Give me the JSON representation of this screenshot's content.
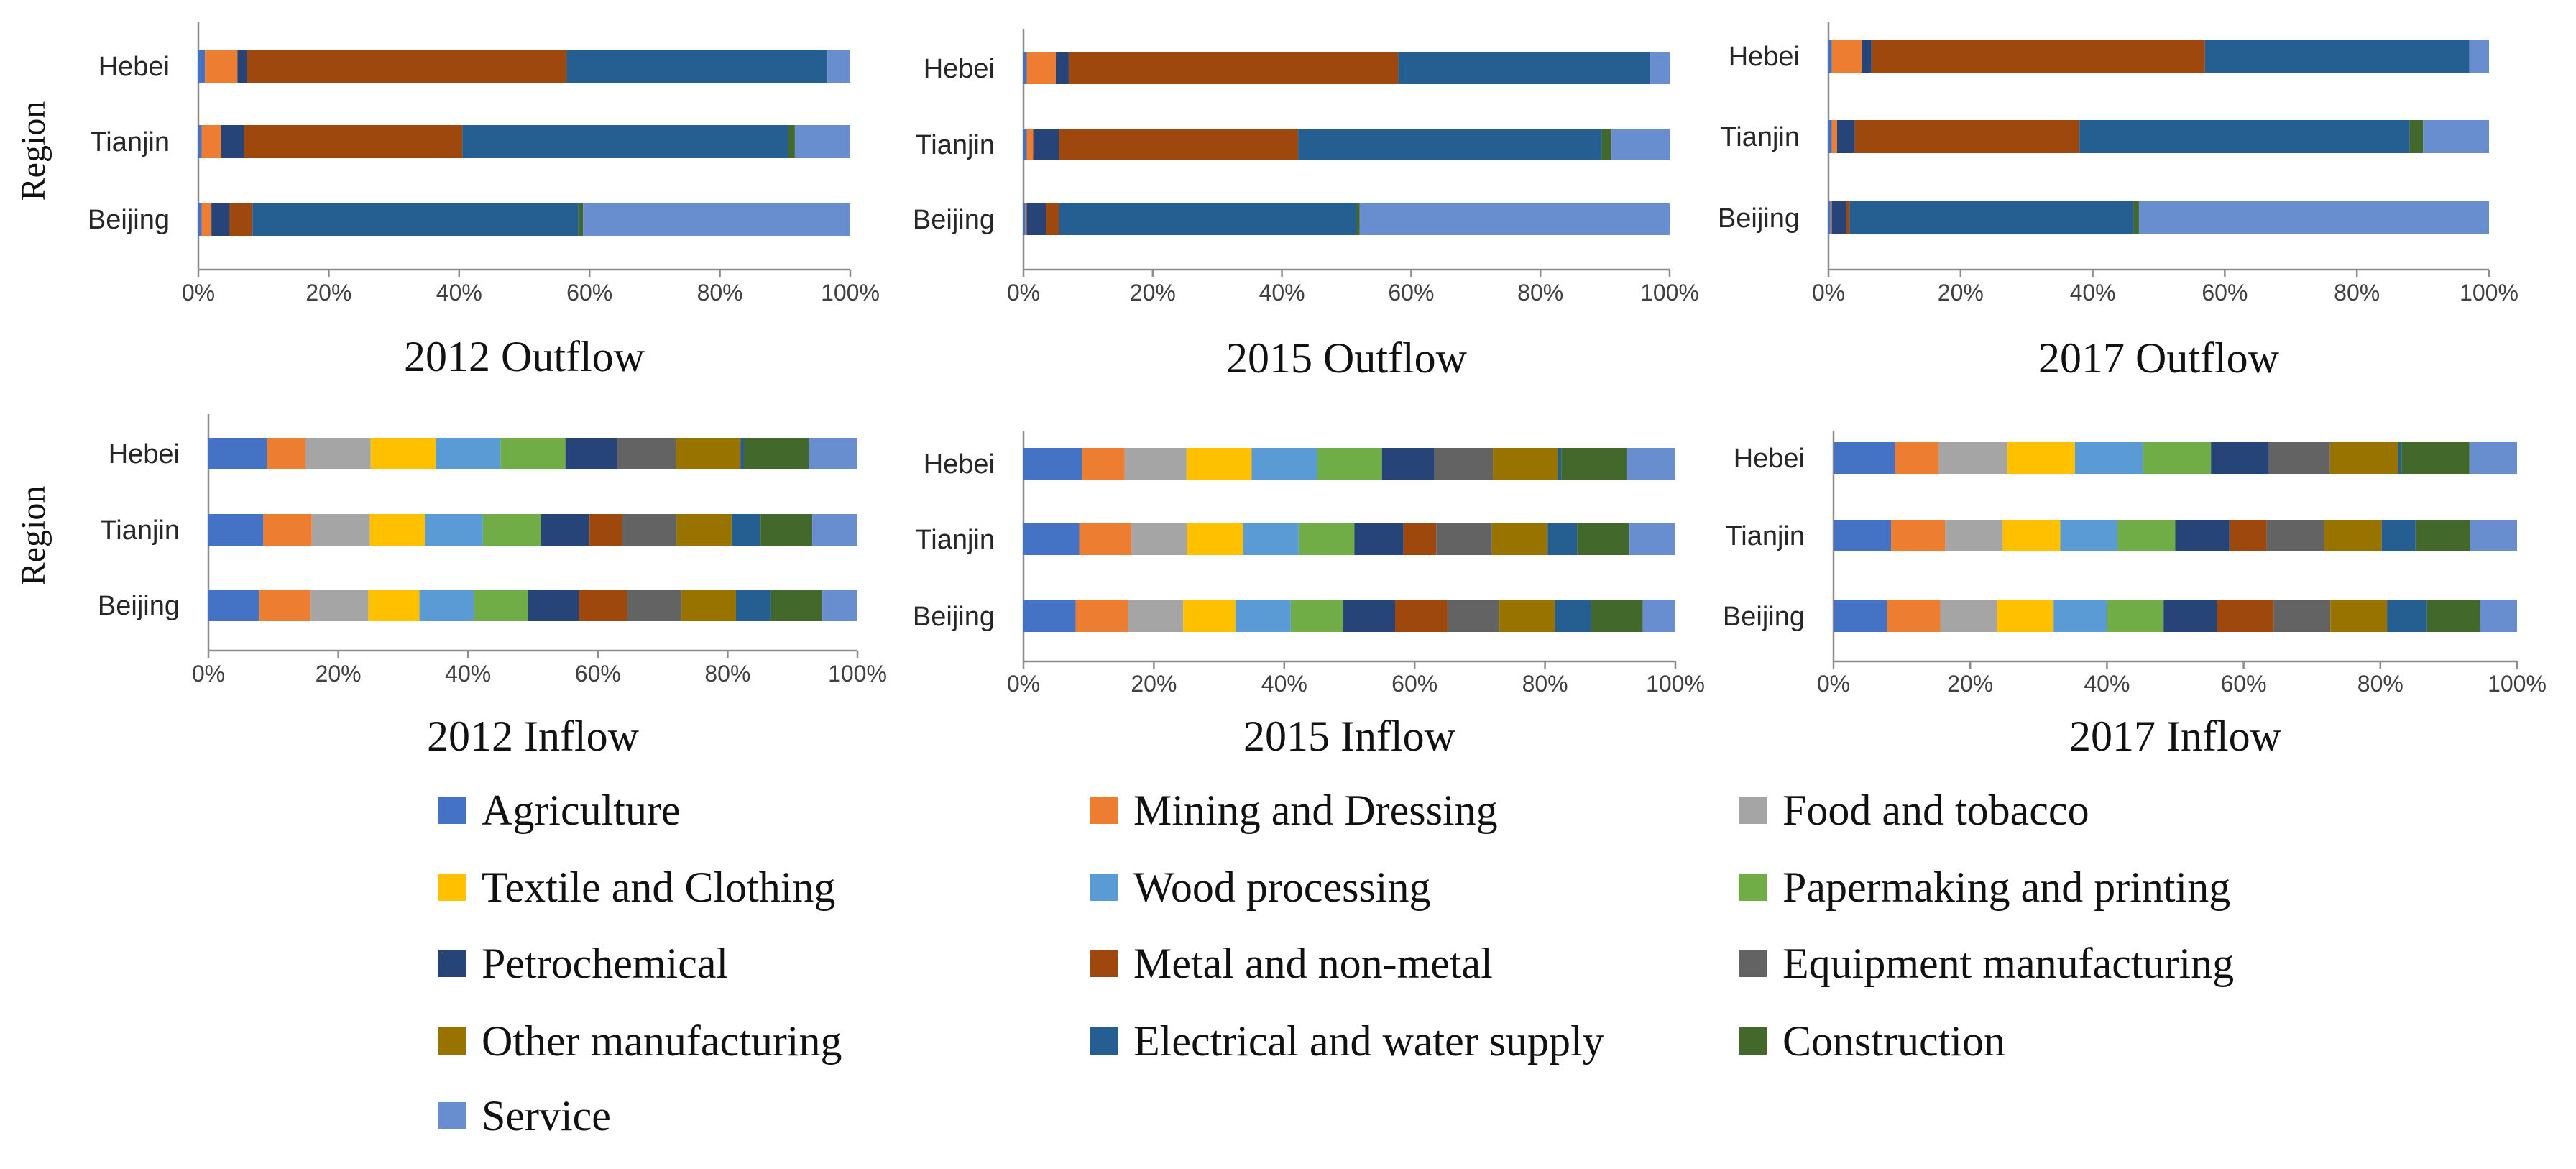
{
  "sectors": [
    {
      "name": "Agriculture",
      "color": "#4472C4"
    },
    {
      "name": "Mining and Dressing",
      "color": "#ED7D31"
    },
    {
      "name": "Food and tobacco",
      "color": "#A5A5A5"
    },
    {
      "name": "Textile and Clothing",
      "color": "#FFC000"
    },
    {
      "name": "Wood processing",
      "color": "#5B9BD5"
    },
    {
      "name": "Papermaking and printing",
      "color": "#70AD47"
    },
    {
      "name": "Petrochemical",
      "color": "#264478"
    },
    {
      "name": "Metal and non-metal",
      "color": "#9E480E"
    },
    {
      "name": "Equipment manufacturing",
      "color": "#636363"
    },
    {
      "name": "Other manufacturing",
      "color": "#997300"
    },
    {
      "name": "Electrical and water supply",
      "color": "#255E91"
    },
    {
      "name": "Construction",
      "color": "#43682B"
    },
    {
      "name": "Service",
      "color": "#698ED0"
    }
  ],
  "chart_data": [
    {
      "type": "bar",
      "orientation": "horizontal",
      "stacked": "percent",
      "title": "2012 Outflow",
      "ylabel": "Region",
      "categories": [
        "Hebei",
        "Tianjin",
        "Beijing"
      ],
      "xticks": [
        "0%",
        "20%",
        "40%",
        "60%",
        "80%",
        "100%"
      ],
      "xlim": [
        0,
        100
      ],
      "series": [
        {
          "name": "Agriculture",
          "values": [
            1,
            0.5,
            0.5
          ]
        },
        {
          "name": "Mining and Dressing",
          "values": [
            5,
            3,
            1.5
          ]
        },
        {
          "name": "Food and tobacco",
          "values": [
            0,
            0,
            0
          ]
        },
        {
          "name": "Textile and Clothing",
          "values": [
            0,
            0,
            0
          ]
        },
        {
          "name": "Wood processing",
          "values": [
            0,
            0,
            0
          ]
        },
        {
          "name": "Papermaking and printing",
          "values": [
            0,
            0,
            0
          ]
        },
        {
          "name": "Petrochemical",
          "values": [
            1.5,
            3.5,
            2.8
          ]
        },
        {
          "name": "Metal and non-metal",
          "values": [
            49,
            33.5,
            3.5
          ]
        },
        {
          "name": "Equipment manufacturing",
          "values": [
            0,
            0,
            0
          ]
        },
        {
          "name": "Other manufacturing",
          "values": [
            0,
            0,
            0
          ]
        },
        {
          "name": "Electrical and water supply",
          "values": [
            40,
            50,
            50
          ]
        },
        {
          "name": "Construction",
          "values": [
            0,
            1,
            0.7
          ]
        },
        {
          "name": "Service",
          "values": [
            3.5,
            8.5,
            41
          ]
        }
      ]
    },
    {
      "type": "bar",
      "orientation": "horizontal",
      "stacked": "percent",
      "title": "2015 Outflow",
      "ylabel": "",
      "categories": [
        "Hebei",
        "Tianjin",
        "Beijing"
      ],
      "xticks": [
        "0%",
        "20%",
        "40%",
        "60%",
        "80%",
        "100%"
      ],
      "xlim": [
        0,
        100
      ],
      "series": [
        {
          "name": "Agriculture",
          "values": [
            0.5,
            0.5,
            0.3
          ]
        },
        {
          "name": "Mining and Dressing",
          "values": [
            4.5,
            1,
            0.2
          ]
        },
        {
          "name": "Food and tobacco",
          "values": [
            0,
            0,
            0
          ]
        },
        {
          "name": "Textile and Clothing",
          "values": [
            0,
            0,
            0
          ]
        },
        {
          "name": "Wood processing",
          "values": [
            0,
            0,
            0
          ]
        },
        {
          "name": "Papermaking and printing",
          "values": [
            0,
            0,
            0
          ]
        },
        {
          "name": "Petrochemical",
          "values": [
            2,
            4,
            3
          ]
        },
        {
          "name": "Metal and non-metal",
          "values": [
            51,
            37,
            2
          ]
        },
        {
          "name": "Equipment manufacturing",
          "values": [
            0,
            0,
            0
          ]
        },
        {
          "name": "Other manufacturing",
          "values": [
            0,
            0,
            0
          ]
        },
        {
          "name": "Electrical and water supply",
          "values": [
            39,
            47,
            46
          ]
        },
        {
          "name": "Construction",
          "values": [
            0,
            1.5,
            0.5
          ]
        },
        {
          "name": "Service",
          "values": [
            3,
            9,
            48
          ]
        }
      ]
    },
    {
      "type": "bar",
      "orientation": "horizontal",
      "stacked": "percent",
      "title": "2017 Outflow",
      "ylabel": "",
      "categories": [
        "Hebei",
        "Tianjin",
        "Beijing"
      ],
      "xticks": [
        "0%",
        "20%",
        "40%",
        "60%",
        "80%",
        "100%"
      ],
      "xlim": [
        0,
        100
      ],
      "series": [
        {
          "name": "Agriculture",
          "values": [
            0.5,
            0.5,
            0.3
          ]
        },
        {
          "name": "Mining and Dressing",
          "values": [
            4.5,
            0.8,
            0.2
          ]
        },
        {
          "name": "Food and tobacco",
          "values": [
            0,
            0,
            0
          ]
        },
        {
          "name": "Textile and Clothing",
          "values": [
            0,
            0,
            0
          ]
        },
        {
          "name": "Wood processing",
          "values": [
            0,
            0,
            0
          ]
        },
        {
          "name": "Papermaking and printing",
          "values": [
            0,
            0,
            0
          ]
        },
        {
          "name": "Petrochemical",
          "values": [
            1.5,
            2.7,
            2.2
          ]
        },
        {
          "name": "Metal and non-metal",
          "values": [
            50.5,
            34,
            0.5
          ]
        },
        {
          "name": "Equipment manufacturing",
          "values": [
            0,
            0,
            0
          ]
        },
        {
          "name": "Other manufacturing",
          "values": [
            0,
            0,
            0
          ]
        },
        {
          "name": "Electrical and water supply",
          "values": [
            40,
            50,
            43
          ]
        },
        {
          "name": "Construction",
          "values": [
            0,
            2,
            0.8
          ]
        },
        {
          "name": "Service",
          "values": [
            3,
            10,
            53
          ]
        }
      ]
    },
    {
      "type": "bar",
      "orientation": "horizontal",
      "stacked": "percent",
      "title": "2012 Inflow",
      "ylabel": "Region",
      "categories": [
        "Hebei",
        "Tianjin",
        "Beijing"
      ],
      "xticks": [
        "0%",
        "20%",
        "40%",
        "60%",
        "80%",
        "100%"
      ],
      "xlim": [
        0,
        100
      ],
      "series": [
        {
          "name": "Agriculture",
          "values": [
            9,
            8.5,
            8
          ]
        },
        {
          "name": "Mining and Dressing",
          "values": [
            6,
            7.5,
            8
          ]
        },
        {
          "name": "Food and tobacco",
          "values": [
            10,
            9,
            9
          ]
        },
        {
          "name": "Textile and Clothing",
          "values": [
            10,
            8.5,
            8
          ]
        },
        {
          "name": "Wood processing",
          "values": [
            10,
            9,
            8.5
          ]
        },
        {
          "name": "Papermaking and printing",
          "values": [
            10,
            9,
            8.5
          ]
        },
        {
          "name": "Petrochemical",
          "values": [
            8,
            7.5,
            8
          ]
        },
        {
          "name": "Metal and non-metal",
          "values": [
            0,
            5,
            7.5
          ]
        },
        {
          "name": "Equipment manufacturing",
          "values": [
            9,
            8.5,
            8.5
          ]
        },
        {
          "name": "Other manufacturing",
          "values": [
            10,
            8.5,
            8.5
          ]
        },
        {
          "name": "Electrical and water supply",
          "values": [
            0.5,
            4.5,
            5.5
          ]
        },
        {
          "name": "Construction",
          "values": [
            10,
            8,
            8
          ]
        },
        {
          "name": "Service",
          "values": [
            7.5,
            7,
            5.5
          ]
        }
      ]
    },
    {
      "type": "bar",
      "orientation": "horizontal",
      "stacked": "percent",
      "title": "2015 Inflow",
      "ylabel": "",
      "categories": [
        "Hebei",
        "Tianjin",
        "Beijing"
      ],
      "xticks": [
        "0%",
        "20%",
        "40%",
        "60%",
        "80%",
        "100%"
      ],
      "xlim": [
        0,
        100
      ],
      "series": [
        {
          "name": "Agriculture",
          "values": [
            9,
            8.5,
            8
          ]
        },
        {
          "name": "Mining and Dressing",
          "values": [
            6.5,
            8,
            8
          ]
        },
        {
          "name": "Food and tobacco",
          "values": [
            9.5,
            8.5,
            8.5
          ]
        },
        {
          "name": "Textile and Clothing",
          "values": [
            10,
            8.5,
            8
          ]
        },
        {
          "name": "Wood processing",
          "values": [
            10,
            8.5,
            8.5
          ]
        },
        {
          "name": "Papermaking and printing",
          "values": [
            10,
            8.5,
            8
          ]
        },
        {
          "name": "Petrochemical",
          "values": [
            8,
            7.5,
            8
          ]
        },
        {
          "name": "Metal and non-metal",
          "values": [
            0,
            5,
            8
          ]
        },
        {
          "name": "Equipment manufacturing",
          "values": [
            9,
            8.5,
            8
          ]
        },
        {
          "name": "Other manufacturing",
          "values": [
            10,
            8.5,
            8.5
          ]
        },
        {
          "name": "Electrical and water supply",
          "values": [
            0.5,
            4.5,
            5.5
          ]
        },
        {
          "name": "Construction",
          "values": [
            10,
            8,
            8
          ]
        },
        {
          "name": "Service",
          "values": [
            7.5,
            7,
            5
          ]
        }
      ]
    },
    {
      "type": "bar",
      "orientation": "horizontal",
      "stacked": "percent",
      "title": "2017 Inflow",
      "ylabel": "",
      "categories": [
        "Hebei",
        "Tianjin",
        "Beijing"
      ],
      "xticks": [
        "0%",
        "20%",
        "40%",
        "60%",
        "80%",
        "100%"
      ],
      "xlim": [
        0,
        100
      ],
      "series": [
        {
          "name": "Agriculture",
          "values": [
            9,
            8.5,
            8
          ]
        },
        {
          "name": "Mining and Dressing",
          "values": [
            6.5,
            8,
            8
          ]
        },
        {
          "name": "Food and tobacco",
          "values": [
            10,
            8.5,
            8.5
          ]
        },
        {
          "name": "Textile and Clothing",
          "values": [
            10,
            8.5,
            8.5
          ]
        },
        {
          "name": "Wood processing",
          "values": [
            10,
            8.5,
            8
          ]
        },
        {
          "name": "Papermaking and printing",
          "values": [
            10,
            8.5,
            8.5
          ]
        },
        {
          "name": "Petrochemical",
          "values": [
            8.5,
            8,
            8
          ]
        },
        {
          "name": "Metal and non-metal",
          "values": [
            0,
            5.5,
            8.5
          ]
        },
        {
          "name": "Equipment manufacturing",
          "values": [
            9,
            8.5,
            8.5
          ]
        },
        {
          "name": "Other manufacturing",
          "values": [
            10,
            8.5,
            8.5
          ]
        },
        {
          "name": "Electrical and water supply",
          "values": [
            0.5,
            5,
            6
          ]
        },
        {
          "name": "Construction",
          "values": [
            10,
            8,
            8
          ]
        },
        {
          "name": "Service",
          "values": [
            7,
            7,
            5.5
          ]
        }
      ]
    }
  ]
}
